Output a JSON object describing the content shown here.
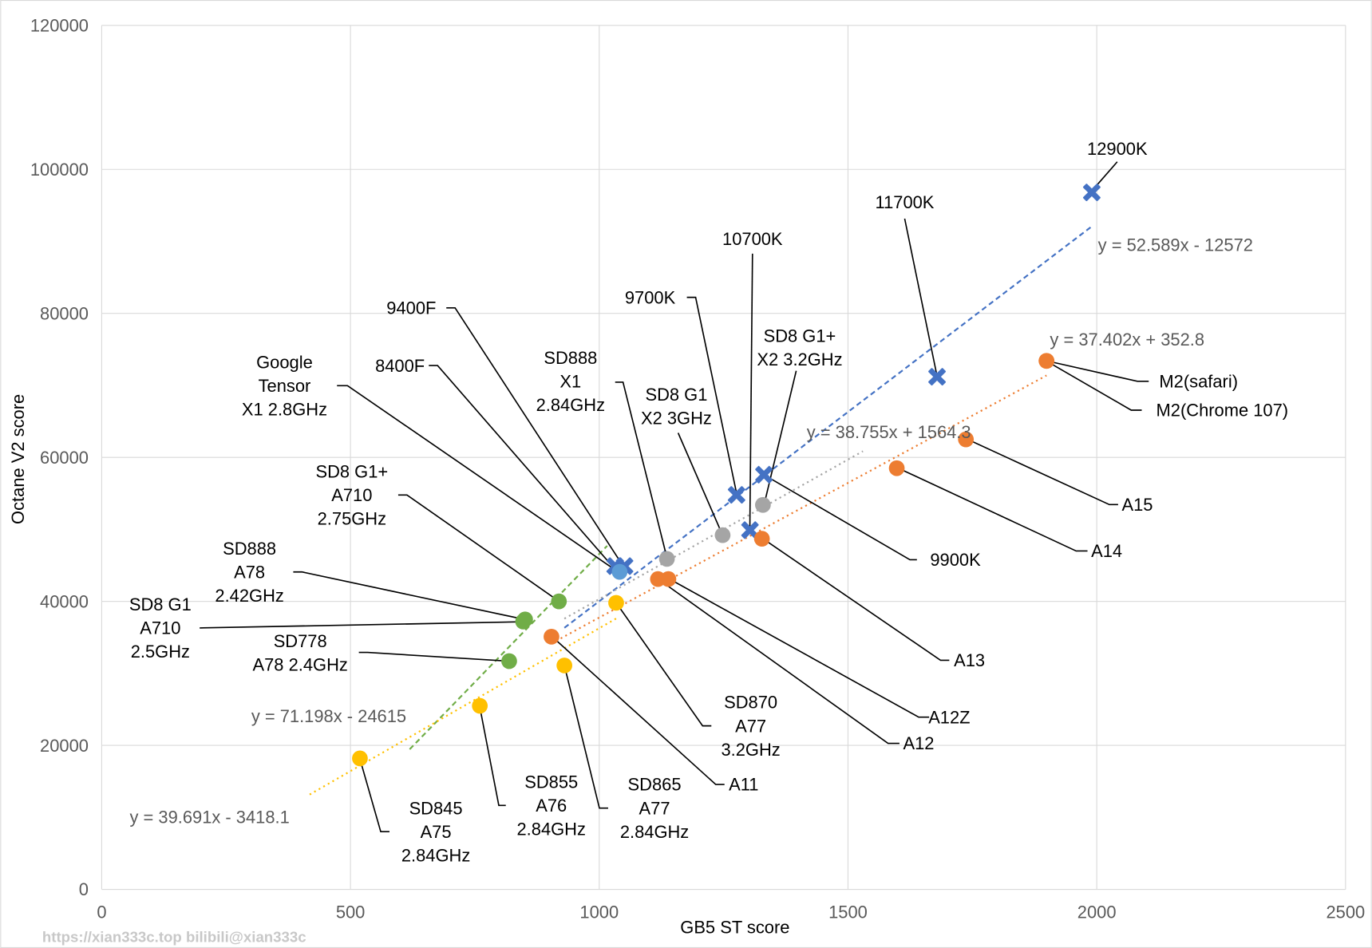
{
  "chart_data": {
    "type": "scatter",
    "xlabel": "GB5 ST score",
    "ylabel": "Octane V2 score",
    "xlim": [
      0,
      2500
    ],
    "ylim": [
      0,
      120000
    ],
    "x_ticks": [
      "0",
      "500",
      "1000",
      "1500",
      "2000",
      "2500"
    ],
    "y_ticks": [
      "0",
      "20000",
      "40000",
      "60000",
      "80000",
      "100000",
      "120000"
    ],
    "grid": true,
    "legend": "none",
    "watermark": "https://xian333c.top bilibili@xian333c",
    "series": [
      {
        "key": "intel",
        "color": "#4472C4",
        "marker": "x",
        "points": [
          {
            "label": "12900K",
            "x": 1990,
            "y": 96800
          },
          {
            "label": "11700K",
            "x": 1679,
            "y": 71200
          },
          {
            "label": "10700K",
            "x": 1303,
            "y": 49900
          },
          {
            "label": "9700K",
            "x": 1276,
            "y": 54800
          },
          {
            "label": "9900K",
            "x": 1331,
            "y": 57600
          },
          {
            "label": "9400F",
            "x": 1051,
            "y": 44900
          },
          {
            "label": "8400F",
            "x": 1032,
            "y": 44900
          }
        ],
        "trend": {
          "equation": "y = 52.589x - 12572",
          "slope": 52.589,
          "intercept": -12572,
          "from": 930,
          "to": 1990,
          "dash": "dashed"
        }
      },
      {
        "key": "tensor",
        "color": "#5B9BD5",
        "marker": "circle",
        "points": [
          {
            "label": "Google\nTensor\nX1 2.8GHz",
            "x": 1041,
            "y": 44100
          }
        ]
      },
      {
        "key": "x-cores",
        "color": "#A5A5A5",
        "marker": "circle",
        "points": [
          {
            "label": "SD888\nX1\n2.84GHz",
            "x": 1136,
            "y": 45900
          },
          {
            "label": "SD8 G1\nX2 3GHz",
            "x": 1248,
            "y": 49200
          },
          {
            "label": "SD8 G1+\nX2 3.2GHz",
            "x": 1329,
            "y": 53400
          }
        ],
        "trend": {
          "equation": "y = 38.755x + 1564.3",
          "slope": 38.755,
          "intercept": 1564.3,
          "from": 930,
          "to": 1530,
          "dash": "dotted"
        }
      },
      {
        "key": "a7xx-cores",
        "color": "#70AD47",
        "marker": "circle",
        "points": [
          {
            "label": "SD8 G1+\nA710\n2.75GHz",
            "x": 919,
            "y": 40000
          },
          {
            "label": "SD888\nA78\n2.42GHz",
            "x": 851,
            "y": 37500
          },
          {
            "label": "SD8 G1\nA710\n2.5GHz",
            "x": 847,
            "y": 37200
          },
          {
            "label": "SD778\nA78 2.4GHz",
            "x": 819,
            "y": 31700
          }
        ],
        "trend": {
          "equation": "y = 71.198x - 24615",
          "slope": 71.198,
          "intercept": -24615,
          "from": 619,
          "to": 1016,
          "dash": "dashed"
        }
      },
      {
        "key": "apple",
        "color": "#ED7D31",
        "marker": "circle",
        "points": [
          {
            "label": "M2(safari)",
            "x": 1899,
            "y": 73400
          },
          {
            "label": "M2(Chrome 107)",
            "x": 1899,
            "y": 73400
          },
          {
            "label": "A15",
            "x": 1737,
            "y": 62500
          },
          {
            "label": "A14",
            "x": 1598,
            "y": 58500
          },
          {
            "label": "A13",
            "x": 1327,
            "y": 48700
          },
          {
            "label": "A12Z",
            "x": 1139,
            "y": 43100
          },
          {
            "label": "A12",
            "x": 1118,
            "y": 43100
          },
          {
            "label": "A11",
            "x": 904,
            "y": 35100
          }
        ],
        "trend": {
          "equation": "y = 37.402x + 352.8",
          "slope": 37.402,
          "intercept": 352.8,
          "from": 904,
          "to": 1899,
          "dash": "dotted"
        }
      },
      {
        "key": "older-snapdragon",
        "color": "#FFC000",
        "marker": "circle",
        "points": [
          {
            "label": "SD870\nA77\n3.2GHz",
            "x": 1034,
            "y": 39800
          },
          {
            "label": "SD865\nA77\n2.84GHz",
            "x": 930,
            "y": 31100
          },
          {
            "label": "SD855\nA76\n2.84GHz",
            "x": 760,
            "y": 25500
          },
          {
            "label": "SD845\nA75\n2.84GHz",
            "x": 519,
            "y": 18200
          }
        ],
        "trend": {
          "equation": "y = 39.691x - 3418.1",
          "slope": 39.691,
          "intercept": -3418.1,
          "from": 418,
          "to": 1040,
          "dash": "dotted"
        }
      }
    ]
  }
}
